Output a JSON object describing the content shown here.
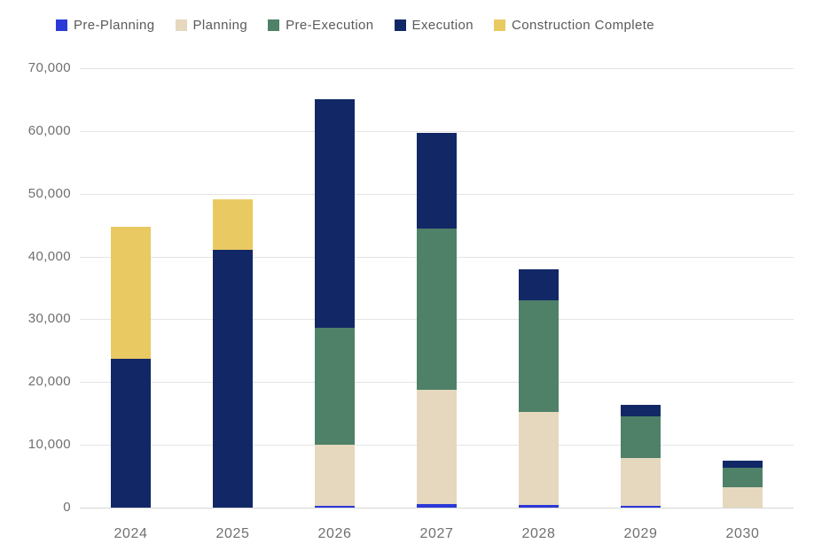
{
  "chart_data": {
    "type": "bar",
    "stacked": true,
    "title": "",
    "xlabel": "",
    "ylabel": "",
    "categories": [
      "2024",
      "2025",
      "2026",
      "2027",
      "2028",
      "2029",
      "2030"
    ],
    "series": [
      {
        "name": "Pre-Planning",
        "color": "#2c39d8",
        "values": [
          0,
          0,
          300,
          600,
          400,
          300,
          0
        ]
      },
      {
        "name": "Planning",
        "color": "#e5d8be",
        "values": [
          0,
          0,
          9700,
          18100,
          14900,
          7600,
          3300
        ]
      },
      {
        "name": "Pre-Execution",
        "color": "#4e8168",
        "values": [
          0,
          0,
          18700,
          25700,
          17700,
          6700,
          3100
        ]
      },
      {
        "name": "Execution",
        "color": "#122866",
        "values": [
          23700,
          41000,
          36300,
          15300,
          5000,
          1800,
          1100
        ]
      },
      {
        "name": "Construction Complete",
        "color": "#e9c962",
        "values": [
          21000,
          8100,
          0,
          0,
          0,
          0,
          0
        ]
      }
    ],
    "stack_totals": [
      44700,
      49100,
      65000,
      59700,
      38000,
      16400,
      7500
    ],
    "ylim": [
      0,
      70000
    ],
    "ytick_step": 10000,
    "ytick_labels": [
      "0",
      "10,000",
      "20,000",
      "30,000",
      "40,000",
      "50,000",
      "60,000",
      "70,000"
    ],
    "grid": true,
    "legend_position": "top-left"
  },
  "colors": {
    "background": "#ffffff",
    "gridline": "#e4e4e4",
    "baseline": "#d6d6d6",
    "axis_text": "#6f6f6f",
    "legend_text": "#5a5a5a"
  }
}
